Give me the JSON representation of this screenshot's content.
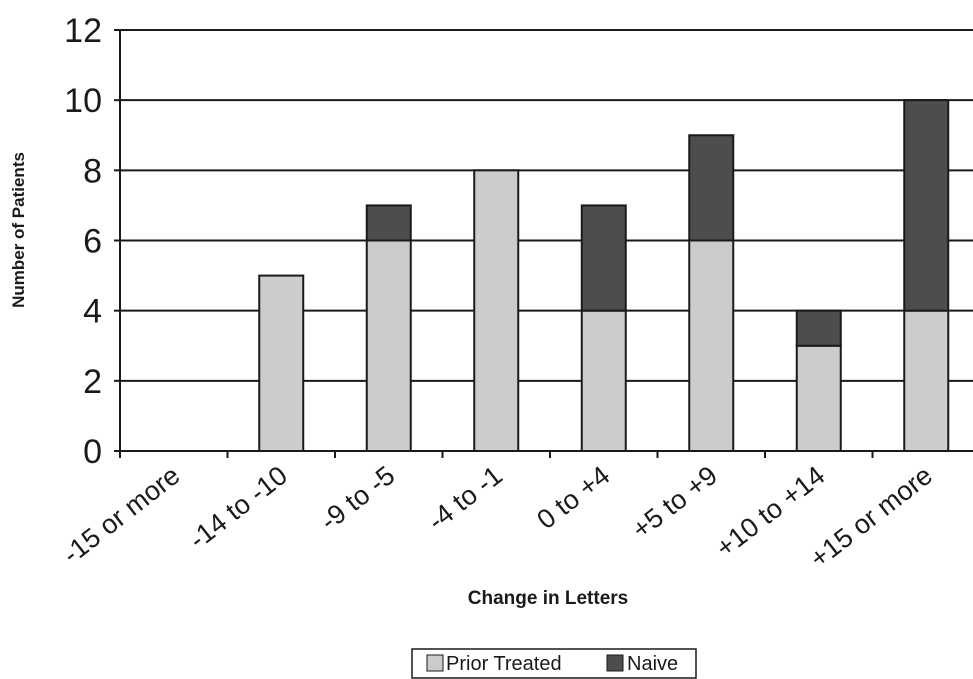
{
  "chart_data": {
    "type": "bar",
    "stacked": true,
    "title": "",
    "xlabel": "Change in Letters",
    "ylabel": "Number of Patients",
    "categories": [
      "-15 or more",
      "-14 to -10",
      "-9 to -5",
      "-4 to -1",
      "0 to +4",
      "+5 to +9",
      "+10 to +14",
      "+15 or more"
    ],
    "series": [
      {
        "name": "Prior Treated",
        "values": [
          0,
          5,
          6,
          8,
          4,
          6,
          3,
          4
        ],
        "color": "#cccccc"
      },
      {
        "name": "Naive",
        "values": [
          0,
          0,
          1,
          0,
          3,
          3,
          1,
          6
        ],
        "color": "#4d4d4d"
      }
    ],
    "yticks": [
      "0",
      "2",
      "4",
      "6",
      "8",
      "10",
      "12"
    ],
    "ylim": [
      0,
      12
    ],
    "grid": true,
    "legend_position": "bottom-center"
  }
}
